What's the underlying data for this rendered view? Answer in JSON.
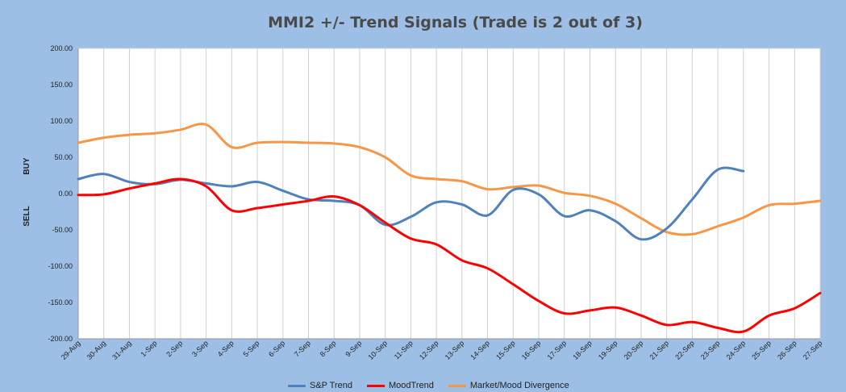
{
  "chart_data": {
    "type": "line",
    "title": "MMI2 +/- Trend Signals (Trade is 2 out of 3)",
    "ylabel_top": "BUY",
    "ylabel_bottom": "SELL",
    "ylim": [
      -200,
      200
    ],
    "y_ticks": [
      "200.00",
      "150.00",
      "100.00",
      "50.00",
      "0.00",
      "-50.00",
      "-100.00",
      "-150.00",
      "-200.00"
    ],
    "grid": "vertical",
    "legend_position": "bottom",
    "categories": [
      "29-Aug",
      "30-Aug",
      "31-Aug",
      "1-Sep",
      "2-Sep",
      "3-Sep",
      "4-Sep",
      "5-Sep",
      "6-Sep",
      "7-Sep",
      "8-Sep",
      "9-Sep",
      "10-Sep",
      "11-Sep",
      "12-Sep",
      "13-Sep",
      "14-Sep",
      "15-Sep",
      "16-Sep",
      "17-Sep",
      "18-Sep",
      "19-Sep",
      "20-Sep",
      "21-Sep",
      "22-Sep",
      "23-Sep",
      "24-Sep",
      "25-Sep",
      "26-Sep",
      "27-Sep"
    ],
    "series": [
      {
        "name": "S&P Trend",
        "color": "#4f81bd",
        "values": [
          20,
          27,
          16,
          13,
          19,
          14,
          10,
          16,
          4,
          -8,
          -10,
          -16,
          -43,
          -32,
          -12,
          -15,
          -30,
          5,
          -1,
          -31,
          -23,
          -38,
          -63,
          -48,
          -8,
          33,
          31,
          null,
          null,
          null
        ]
      },
      {
        "name": "MoodTrend",
        "color": "#ff0000",
        "values": [
          -2,
          -1,
          7,
          14,
          20,
          10,
          -23,
          -20,
          -15,
          -10,
          -4,
          -16,
          -40,
          -62,
          -70,
          -92,
          -103,
          -125,
          -148,
          -165,
          -161,
          -157,
          -168,
          -181,
          -177,
          -185,
          -190,
          -168,
          -158,
          -137
        ]
      },
      {
        "name": "Market/Mood Divergence",
        "color": "#f79646",
        "values": [
          70,
          77,
          81,
          83,
          88,
          95,
          64,
          70,
          71,
          70,
          69,
          64,
          50,
          25,
          20,
          17,
          6,
          9,
          11,
          1,
          -3,
          -14,
          -34,
          -53,
          -56,
          -45,
          -33,
          -16,
          -14,
          -10
        ]
      }
    ]
  }
}
